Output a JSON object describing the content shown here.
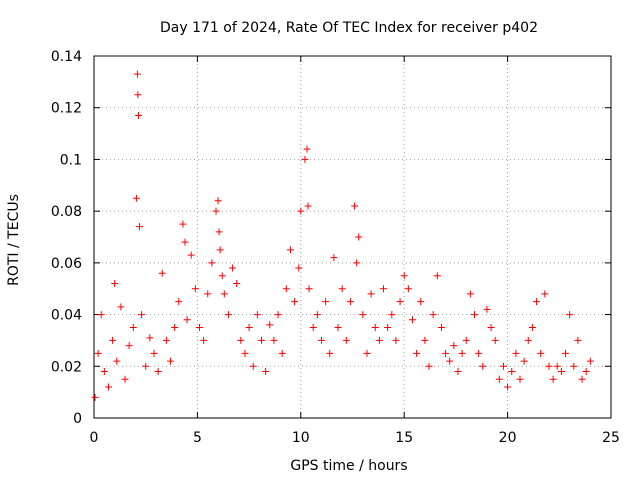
{
  "chart_data": {
    "type": "scatter",
    "title": "Day 171 of 2024, Rate Of TEC Index for receiver p402",
    "xlabel": "GPS time / hours",
    "ylabel": "ROTI / TECUs",
    "xlim": [
      0,
      25
    ],
    "ylim": [
      0,
      0.14
    ],
    "xticks": [
      0,
      5,
      10,
      15,
      20,
      25
    ],
    "xtick_labels": [
      "0",
      "5",
      "10",
      "15",
      "20",
      "25"
    ],
    "yticks": [
      0,
      0.02,
      0.04,
      0.06,
      0.08,
      0.1,
      0.12,
      0.14
    ],
    "ytick_labels": [
      "0",
      "0.02",
      "0.04",
      "0.06",
      "0.08",
      "0.1",
      "0.12",
      "0.14"
    ],
    "grid": true,
    "marker": "+",
    "color": "#ff0000",
    "series": [
      {
        "name": "ROTI p402",
        "x": [
          0.05,
          0.2,
          0.35,
          0.5,
          0.7,
          0.9,
          1.0,
          1.1,
          1.3,
          1.5,
          1.7,
          1.9,
          2.05,
          2.1,
          2.12,
          2.15,
          2.2,
          2.3,
          2.5,
          2.7,
          2.9,
          3.1,
          3.3,
          3.5,
          3.7,
          3.9,
          4.1,
          4.3,
          4.4,
          4.5,
          4.7,
          4.9,
          5.1,
          5.3,
          5.5,
          5.7,
          5.9,
          6.0,
          6.05,
          6.1,
          6.2,
          6.3,
          6.5,
          6.7,
          6.9,
          7.1,
          7.3,
          7.5,
          7.7,
          7.9,
          8.1,
          8.3,
          8.5,
          8.7,
          8.9,
          9.1,
          9.3,
          9.5,
          9.7,
          9.9,
          10.0,
          10.2,
          10.3,
          10.35,
          10.4,
          10.6,
          10.8,
          11.0,
          11.2,
          11.4,
          11.6,
          11.8,
          12.0,
          12.2,
          12.4,
          12.6,
          12.7,
          12.8,
          13.0,
          13.2,
          13.4,
          13.6,
          13.8,
          14.0,
          14.2,
          14.4,
          14.6,
          14.8,
          15.0,
          15.2,
          15.4,
          15.6,
          15.8,
          16.0,
          16.2,
          16.4,
          16.6,
          16.8,
          17.0,
          17.2,
          17.4,
          17.6,
          17.8,
          18.0,
          18.2,
          18.4,
          18.6,
          18.8,
          19.0,
          19.2,
          19.4,
          19.6,
          19.8,
          20.0,
          20.2,
          20.4,
          20.6,
          20.8,
          21.0,
          21.2,
          21.4,
          21.6,
          21.8,
          22.0,
          22.2,
          22.4,
          22.6,
          22.8,
          23.0,
          23.2,
          23.4,
          23.6,
          23.8,
          24.0
        ],
        "y": [
          0.008,
          0.025,
          0.04,
          0.018,
          0.012,
          0.03,
          0.052,
          0.022,
          0.043,
          0.015,
          0.028,
          0.035,
          0.085,
          0.133,
          0.125,
          0.117,
          0.074,
          0.04,
          0.02,
          0.031,
          0.025,
          0.018,
          0.056,
          0.03,
          0.022,
          0.035,
          0.045,
          0.075,
          0.068,
          0.038,
          0.063,
          0.05,
          0.035,
          0.03,
          0.048,
          0.06,
          0.08,
          0.084,
          0.072,
          0.065,
          0.055,
          0.048,
          0.04,
          0.058,
          0.052,
          0.03,
          0.025,
          0.035,
          0.02,
          0.04,
          0.03,
          0.018,
          0.036,
          0.03,
          0.04,
          0.025,
          0.05,
          0.065,
          0.045,
          0.058,
          0.08,
          0.1,
          0.104,
          0.082,
          0.05,
          0.035,
          0.04,
          0.03,
          0.045,
          0.025,
          0.062,
          0.035,
          0.05,
          0.03,
          0.045,
          0.082,
          0.06,
          0.07,
          0.04,
          0.025,
          0.048,
          0.035,
          0.03,
          0.05,
          0.035,
          0.04,
          0.03,
          0.045,
          0.055,
          0.05,
          0.038,
          0.025,
          0.045,
          0.03,
          0.02,
          0.04,
          0.055,
          0.035,
          0.025,
          0.022,
          0.028,
          0.018,
          0.025,
          0.03,
          0.048,
          0.04,
          0.025,
          0.02,
          0.042,
          0.035,
          0.03,
          0.015,
          0.02,
          0.012,
          0.018,
          0.025,
          0.015,
          0.022,
          0.03,
          0.035,
          0.045,
          0.025,
          0.048,
          0.02,
          0.015,
          0.02,
          0.018,
          0.025,
          0.04,
          0.02,
          0.03,
          0.015,
          0.018,
          0.022
        ]
      }
    ]
  }
}
